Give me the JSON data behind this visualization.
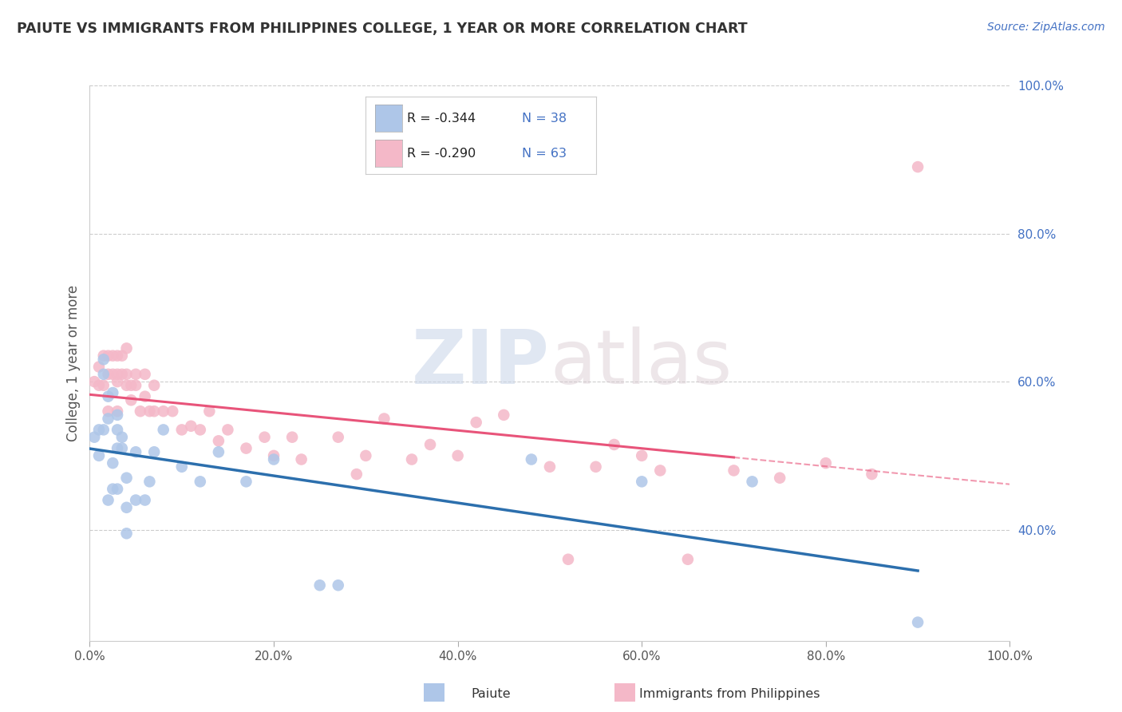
{
  "title": "PAIUTE VS IMMIGRANTS FROM PHILIPPINES COLLEGE, 1 YEAR OR MORE CORRELATION CHART",
  "source_text": "Source: ZipAtlas.com",
  "ylabel": "College, 1 year or more",
  "legend_label1": "Paiute",
  "legend_label2": "Immigrants from Philippines",
  "legend_r1": "R = -0.344",
  "legend_n1": "N = 38",
  "legend_r2": "R = -0.290",
  "legend_n2": "N = 63",
  "color_blue": "#aec6e8",
  "color_pink": "#f4b8c8",
  "line_color_blue": "#2c6fad",
  "line_color_pink": "#e8547a",
  "watermark_zip": "ZIP",
  "watermark_atlas": "atlas",
  "background_color": "#ffffff",
  "paiute_x": [
    0.005,
    0.01,
    0.01,
    0.015,
    0.015,
    0.015,
    0.02,
    0.02,
    0.02,
    0.025,
    0.025,
    0.025,
    0.03,
    0.03,
    0.03,
    0.03,
    0.035,
    0.035,
    0.04,
    0.04,
    0.04,
    0.05,
    0.05,
    0.06,
    0.065,
    0.07,
    0.08,
    0.1,
    0.12,
    0.14,
    0.17,
    0.2,
    0.25,
    0.27,
    0.48,
    0.6,
    0.72,
    0.9
  ],
  "paiute_y": [
    0.525,
    0.5,
    0.535,
    0.61,
    0.63,
    0.535,
    0.55,
    0.58,
    0.44,
    0.455,
    0.585,
    0.49,
    0.555,
    0.455,
    0.51,
    0.535,
    0.525,
    0.51,
    0.47,
    0.395,
    0.43,
    0.44,
    0.505,
    0.44,
    0.465,
    0.505,
    0.535,
    0.485,
    0.465,
    0.505,
    0.465,
    0.495,
    0.325,
    0.325,
    0.495,
    0.465,
    0.465,
    0.275
  ],
  "phil_x": [
    0.005,
    0.01,
    0.01,
    0.015,
    0.015,
    0.02,
    0.02,
    0.02,
    0.025,
    0.025,
    0.03,
    0.03,
    0.03,
    0.03,
    0.035,
    0.035,
    0.04,
    0.04,
    0.04,
    0.045,
    0.045,
    0.05,
    0.05,
    0.055,
    0.06,
    0.06,
    0.065,
    0.07,
    0.07,
    0.08,
    0.09,
    0.1,
    0.11,
    0.12,
    0.13,
    0.14,
    0.15,
    0.17,
    0.19,
    0.2,
    0.22,
    0.23,
    0.27,
    0.29,
    0.3,
    0.32,
    0.35,
    0.37,
    0.4,
    0.42,
    0.45,
    0.5,
    0.52,
    0.55,
    0.57,
    0.6,
    0.62,
    0.65,
    0.7,
    0.75,
    0.8,
    0.85,
    0.9
  ],
  "phil_y": [
    0.6,
    0.62,
    0.595,
    0.635,
    0.595,
    0.61,
    0.635,
    0.56,
    0.635,
    0.61,
    0.61,
    0.635,
    0.56,
    0.6,
    0.635,
    0.61,
    0.595,
    0.61,
    0.645,
    0.595,
    0.575,
    0.595,
    0.61,
    0.56,
    0.58,
    0.61,
    0.56,
    0.56,
    0.595,
    0.56,
    0.56,
    0.535,
    0.54,
    0.535,
    0.56,
    0.52,
    0.535,
    0.51,
    0.525,
    0.5,
    0.525,
    0.495,
    0.525,
    0.475,
    0.5,
    0.55,
    0.495,
    0.515,
    0.5,
    0.545,
    0.555,
    0.485,
    0.36,
    0.485,
    0.515,
    0.5,
    0.48,
    0.36,
    0.48,
    0.47,
    0.49,
    0.475,
    0.89
  ],
  "xmin": 0.0,
  "xmax": 1.0,
  "ymin": 0.25,
  "ymax": 1.0,
  "yticks": [
    0.4,
    0.6,
    0.8,
    1.0
  ],
  "ytick_labels": [
    "40.0%",
    "60.0%",
    "80.0%",
    "100.0%"
  ],
  "xticks": [
    0.0,
    0.2,
    0.4,
    0.6,
    0.8,
    1.0
  ],
  "xtick_labels": [
    "0.0%",
    "20.0%",
    "40.0%",
    "60.0%",
    "80.0%",
    "100.0%"
  ]
}
